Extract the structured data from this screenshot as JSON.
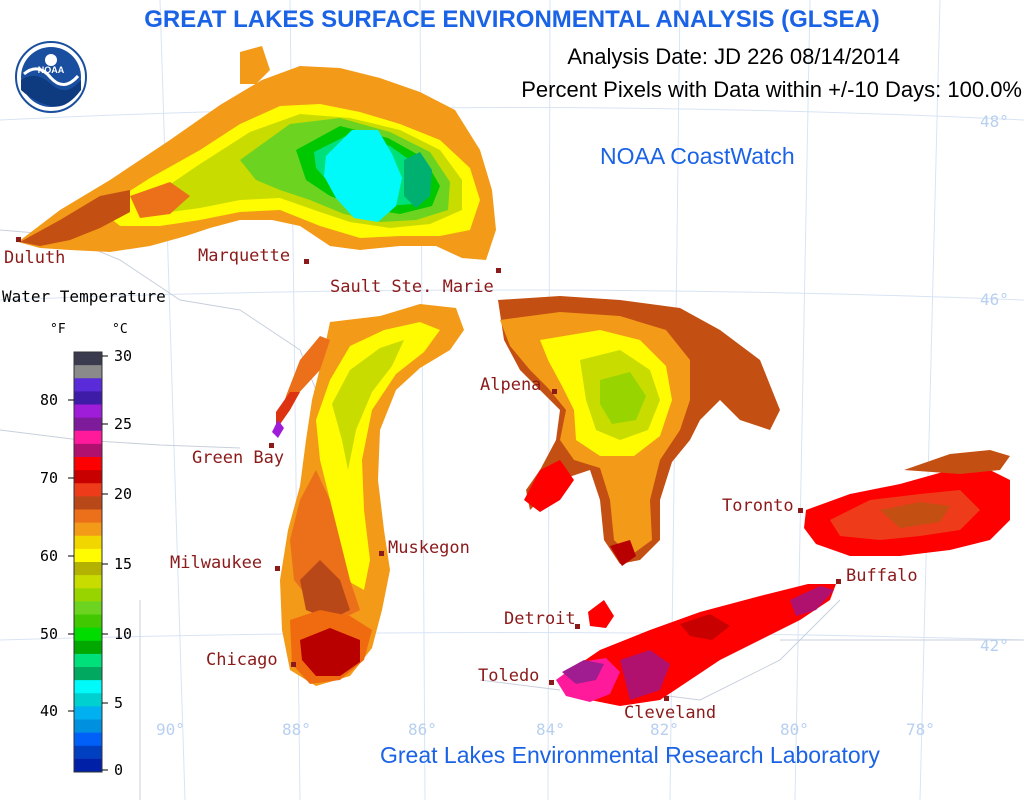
{
  "header": {
    "title": "GREAT LAKES SURFACE ENVIRONMENTAL ANALYSIS (GLSEA)",
    "analysis_date": "Analysis Date:  JD 226 08/14/2014",
    "percent_pixels": "Percent Pixels with Data within +/-10 Days: 100.0%"
  },
  "credits": {
    "coastwatch": "NOAA CoastWatch",
    "lab": "Great Lakes Environmental Research Laboratory"
  },
  "logo": {
    "text": "NOAA",
    "icon": "noaa-logo-icon"
  },
  "cities": [
    {
      "name": "Duluth"
    },
    {
      "name": "Marquette"
    },
    {
      "name": "Sault Ste. Marie"
    },
    {
      "name": "Green Bay"
    },
    {
      "name": "Alpena"
    },
    {
      "name": "Milwaukee"
    },
    {
      "name": "Muskegon"
    },
    {
      "name": "Toronto"
    },
    {
      "name": "Buffalo"
    },
    {
      "name": "Detroit"
    },
    {
      "name": "Chicago"
    },
    {
      "name": "Toledo"
    },
    {
      "name": "Cleveland"
    }
  ],
  "legend": {
    "title": "Water Temperature",
    "unit_f": "°F",
    "unit_c": "°C",
    "f_ticks": [
      "80",
      "70",
      "60",
      "50",
      "40"
    ],
    "c_ticks": [
      "30",
      "25",
      "20",
      "15",
      "10",
      "5",
      "0"
    ],
    "colors": [
      "#3b3b4f",
      "#8a8a8a",
      "#5a2bd8",
      "#3e1ca8",
      "#9f1dd8",
      "#7e1b9b",
      "#ff1a9c",
      "#b0106e",
      "#ff0000",
      "#c90000",
      "#ee3c1a",
      "#b84818",
      "#ec6f1a",
      "#f39a18",
      "#f2d600",
      "#fffb00",
      "#b4b200",
      "#c8dc00",
      "#98d400",
      "#6cd420",
      "#42c800",
      "#00dc00",
      "#00a800",
      "#00e07a",
      "#00a860",
      "#00fafa",
      "#00d0d0",
      "#00b0f0",
      "#0090e0",
      "#0060f8",
      "#0040c0",
      "#0020a8"
    ]
  },
  "graticule": {
    "lat_labels": [
      "48°",
      "46°",
      "42°"
    ],
    "lon_labels": [
      "90°",
      "88°",
      "86°",
      "84°",
      "82°",
      "80°",
      "78°"
    ]
  }
}
